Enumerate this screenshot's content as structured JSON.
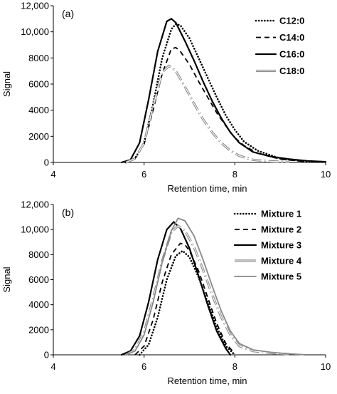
{
  "chart_data": [
    {
      "type": "line",
      "panel_label": "(a)",
      "xlabel": "Retention time, min",
      "ylabel": "Signal",
      "xlim": [
        4,
        10
      ],
      "ylim": [
        0,
        12000
      ],
      "xticks": [
        "4",
        "6",
        "8",
        "10"
      ],
      "yticks": [
        "0",
        "2000",
        "4000",
        "6000",
        "8000",
        "10,000",
        "12,000"
      ],
      "legend_position": "top-right",
      "series": [
        {
          "name": "C12:0",
          "style": "dotted",
          "color": "#000000",
          "x": [
            5.6,
            5.8,
            6.0,
            6.2,
            6.4,
            6.6,
            6.7,
            6.8,
            7.0,
            7.2,
            7.4,
            7.6,
            7.8,
            8.0,
            8.2,
            8.5,
            9.0,
            9.5,
            10.0
          ],
          "y": [
            0,
            300,
            1500,
            4500,
            8000,
            10200,
            10600,
            10500,
            9500,
            8000,
            6500,
            5000,
            3600,
            2500,
            1600,
            900,
            300,
            100,
            50
          ]
        },
        {
          "name": "C14:0",
          "style": "dashed",
          "color": "#000000",
          "x": [
            5.6,
            5.8,
            6.0,
            6.2,
            6.4,
            6.6,
            6.7,
            6.8,
            7.0,
            7.2,
            7.4,
            7.6,
            7.8,
            8.0,
            8.2,
            8.5,
            9.0,
            9.5
          ],
          "y": [
            0,
            300,
            1400,
            4000,
            6800,
            8700,
            8800,
            8500,
            7500,
            6200,
            5000,
            3800,
            2800,
            1900,
            1300,
            700,
            250,
            80
          ]
        },
        {
          "name": "C16:0",
          "style": "solid",
          "color": "#000000",
          "x": [
            5.5,
            5.7,
            5.9,
            6.1,
            6.3,
            6.5,
            6.6,
            6.7,
            6.9,
            7.1,
            7.3,
            7.5,
            7.7,
            7.9,
            8.1,
            8.4,
            8.8,
            9.2,
            9.6,
            10.0
          ],
          "y": [
            0,
            200,
            1500,
            4800,
            8500,
            10800,
            11000,
            10700,
            9300,
            7800,
            6200,
            4700,
            3400,
            2300,
            1500,
            800,
            450,
            250,
            120,
            50
          ]
        },
        {
          "name": "C18:0",
          "style": "double-gray",
          "color": "#888888",
          "x": [
            5.6,
            5.8,
            6.0,
            6.2,
            6.4,
            6.55,
            6.7,
            6.9,
            7.1,
            7.3,
            7.5,
            7.7,
            7.9,
            8.1,
            8.4,
            8.8,
            9.2
          ],
          "y": [
            0,
            300,
            1500,
            4300,
            6900,
            7400,
            7000,
            5800,
            4500,
            3300,
            2300,
            1500,
            900,
            500,
            200,
            80,
            30
          ]
        }
      ]
    },
    {
      "type": "line",
      "panel_label": "(b)",
      "xlabel": "Retention time, min",
      "ylabel": "Signal",
      "xlim": [
        4,
        10
      ],
      "ylim": [
        0,
        12000
      ],
      "xticks": [
        "4",
        "6",
        "8",
        "10"
      ],
      "yticks": [
        "0",
        "2000",
        "4000",
        "6000",
        "8000",
        "10,000",
        "12,000"
      ],
      "legend_position": "top-right",
      "series": [
        {
          "name": "Mixture 1",
          "style": "dotted",
          "color": "#000000",
          "x": [
            5.9,
            6.1,
            6.3,
            6.5,
            6.7,
            6.85,
            7.0,
            7.2,
            7.4,
            7.6,
            7.8,
            8.0
          ],
          "y": [
            0,
            800,
            3000,
            6000,
            7900,
            8300,
            7800,
            6200,
            4200,
            2200,
            700,
            0
          ]
        },
        {
          "name": "Mixture 2",
          "style": "dashed",
          "color": "#000000",
          "x": [
            5.8,
            6.0,
            6.2,
            6.4,
            6.6,
            6.8,
            6.9,
            7.0,
            7.2,
            7.4,
            7.6,
            7.8,
            8.0
          ],
          "y": [
            0,
            700,
            2800,
            5800,
            8000,
            8900,
            8800,
            8300,
            6700,
            4600,
            2500,
            900,
            100
          ]
        },
        {
          "name": "Mixture 3",
          "style": "solid",
          "color": "#000000",
          "x": [
            5.5,
            5.7,
            5.9,
            6.1,
            6.3,
            6.5,
            6.65,
            6.8,
            7.0,
            7.2,
            7.4,
            7.6,
            7.8,
            7.9
          ],
          "y": [
            0,
            300,
            1500,
            4200,
            7600,
            10000,
            10600,
            10100,
            8500,
            6300,
            4000,
            1900,
            500,
            0
          ]
        },
        {
          "name": "Mixture 4",
          "style": "double-gray",
          "color": "#888888",
          "x": [
            5.6,
            5.8,
            6.0,
            6.2,
            6.4,
            6.6,
            6.75,
            6.9,
            7.1,
            7.3,
            7.5,
            7.7,
            7.9,
            8.1,
            8.4,
            8.8,
            9.2
          ],
          "y": [
            0,
            400,
            1800,
            4500,
            7500,
            9800,
            10300,
            9900,
            8600,
            6800,
            4800,
            3000,
            1600,
            700,
            300,
            150,
            50
          ]
        },
        {
          "name": "Mixture 5",
          "style": "solid-gray",
          "color": "#888888",
          "x": [
            5.6,
            5.8,
            6.0,
            6.2,
            6.4,
            6.6,
            6.75,
            6.9,
            7.1,
            7.3,
            7.5,
            7.7,
            7.9,
            8.1,
            8.4,
            8.8,
            9.2,
            9.5
          ],
          "y": [
            0,
            300,
            1600,
            4200,
            7400,
            9900,
            10900,
            10700,
            9500,
            7600,
            5500,
            3500,
            1900,
            900,
            400,
            200,
            80,
            20
          ]
        }
      ]
    }
  ]
}
